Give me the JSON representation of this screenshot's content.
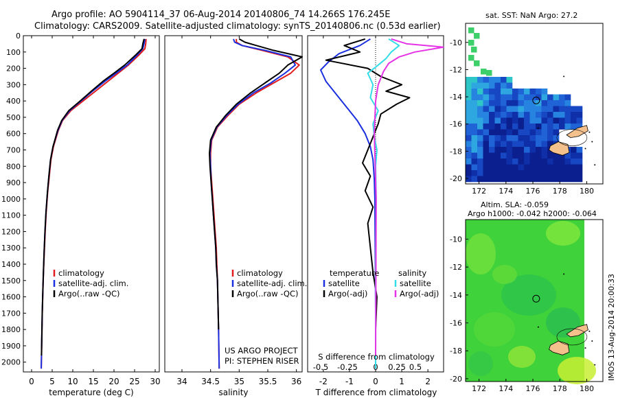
{
  "header": {
    "line1": "Argo profile: AO 5904114_37 06-Aug-2014 20140806_74 14.266S 176.245E",
    "line2": "Climatology: CARS2009. Satellite-adjusted climatology: synTS_20140806.nc (0.53d earlier)"
  },
  "colors": {
    "climatology": "#e01b1b",
    "satellite": "#1a2fe0",
    "argo": "#000000",
    "sal_satellite": "#33dde8",
    "sal_argo": "#e632e6",
    "land": "#f4c08c"
  },
  "chart_data": [
    {
      "type": "line",
      "id": "temperature",
      "xlabel": "temperature (deg C)",
      "ylabel": "",
      "xlim": [
        -2,
        31
      ],
      "ylim": [
        2060,
        0
      ],
      "xticks": [
        0,
        5,
        10,
        15,
        20,
        25,
        30
      ],
      "yticks": [
        0,
        100,
        200,
        300,
        400,
        500,
        600,
        700,
        800,
        900,
        1000,
        1100,
        1200,
        1300,
        1400,
        1500,
        1600,
        1700,
        1800,
        1900,
        2000
      ],
      "legend": [
        "climatology",
        "satellite-adj. clim.",
        "Argo(..raw -QC)"
      ],
      "series": [
        {
          "name": "climatology",
          "x": [
            27.8,
            27.7,
            27.5,
            26.0,
            23.5,
            21.0,
            18.5,
            15.5,
            12.5,
            9.5,
            7.5,
            6.5,
            5.3,
            4.7,
            4.3,
            3.9,
            3.55,
            3.3,
            3.1,
            2.9,
            2.75,
            2.6,
            2.5,
            2.42,
            2.35
          ],
          "y": [
            20,
            50,
            80,
            120,
            180,
            230,
            280,
            340,
            400,
            460,
            520,
            580,
            680,
            760,
            860,
            960,
            1080,
            1200,
            1320,
            1440,
            1560,
            1700,
            1840,
            1960,
            2040
          ]
        },
        {
          "name": "satellite-adj. clim.",
          "x": [
            27.5,
            27.3,
            27.0,
            25.6,
            23.2,
            20.5,
            17.8,
            14.8,
            12.0,
            9.2,
            7.4,
            6.4,
            5.2,
            4.6,
            4.2,
            3.85,
            3.5,
            3.25,
            3.05,
            2.88,
            2.73,
            2.58,
            2.48,
            2.4,
            2.33
          ],
          "y": [
            20,
            50,
            80,
            120,
            180,
            230,
            280,
            340,
            400,
            460,
            520,
            580,
            680,
            760,
            860,
            960,
            1080,
            1200,
            1320,
            1440,
            1560,
            1700,
            1840,
            1960,
            2040
          ]
        },
        {
          "name": "Argo(..raw -QC)",
          "x": [
            27.3,
            27.0,
            26.8,
            25.2,
            22.6,
            20.0,
            17.3,
            14.5,
            11.8,
            9.0,
            7.3,
            6.3,
            5.2,
            4.6,
            4.2,
            3.85,
            3.5,
            3.25,
            3.05,
            2.88,
            2.73,
            2.58,
            2.48,
            2.4
          ],
          "y": [
            20,
            50,
            80,
            120,
            180,
            230,
            280,
            340,
            400,
            460,
            520,
            580,
            680,
            760,
            860,
            960,
            1080,
            1200,
            1320,
            1440,
            1560,
            1700,
            1840,
            1960
          ]
        }
      ]
    },
    {
      "type": "line",
      "id": "salinity",
      "xlabel": "salinity",
      "ylabel": "",
      "xlim": [
        33.7,
        36.1
      ],
      "ylim": [
        2060,
        0
      ],
      "xticks": [
        34,
        34.5,
        35,
        35.5,
        36
      ],
      "legend": [
        "climatology",
        "satellite-adj. clim.",
        "Argo(..raw -QC)"
      ],
      "annotations": [
        "US ARGO PROJECT",
        "PI: STEPHEN RISER"
      ],
      "series": [
        {
          "name": "climatology",
          "x": [
            34.95,
            34.95,
            35.05,
            35.4,
            35.85,
            36.05,
            35.9,
            35.6,
            35.3,
            35.0,
            34.8,
            34.62,
            34.52,
            34.5,
            34.5,
            34.52,
            34.54,
            34.56,
            34.58,
            34.6,
            34.61,
            34.62,
            34.63,
            34.64,
            34.65
          ],
          "y": [
            20,
            40,
            60,
            90,
            130,
            180,
            230,
            290,
            350,
            420,
            490,
            560,
            640,
            720,
            800,
            900,
            1000,
            1100,
            1200,
            1300,
            1400,
            1500,
            1650,
            1800,
            2040
          ]
        },
        {
          "name": "satellite-adj. clim.",
          "x": [
            34.9,
            34.92,
            35.05,
            35.45,
            35.9,
            35.98,
            35.8,
            35.55,
            35.25,
            34.98,
            34.78,
            34.61,
            34.51,
            34.49,
            34.5,
            34.51,
            34.53,
            34.55,
            34.57,
            34.59,
            34.6,
            34.62,
            34.63,
            34.64,
            34.65
          ],
          "y": [
            20,
            40,
            60,
            90,
            130,
            180,
            230,
            290,
            350,
            420,
            490,
            560,
            640,
            720,
            800,
            900,
            1000,
            1100,
            1200,
            1300,
            1400,
            1500,
            1650,
            1800,
            2040
          ]
        },
        {
          "name": "Argo(..raw -QC)",
          "x": [
            35.0,
            35.1,
            35.3,
            35.6,
            36.1,
            35.85,
            35.7,
            35.45,
            35.2,
            34.95,
            34.76,
            34.6,
            34.5,
            34.48,
            34.49,
            34.51,
            34.53,
            34.55,
            34.57,
            34.59,
            34.6,
            34.62,
            34.63,
            34.64
          ],
          "y": [
            20,
            40,
            60,
            90,
            130,
            180,
            230,
            290,
            350,
            420,
            490,
            560,
            640,
            720,
            800,
            900,
            1000,
            1100,
            1200,
            1300,
            1400,
            1500,
            1650,
            1800
          ]
        }
      ]
    },
    {
      "type": "line",
      "id": "difference",
      "xlabel": "T difference from climatology",
      "x2label": "S difference from climatology",
      "ylabel": "",
      "xlim": [
        -2.6,
        2.6
      ],
      "ylim": [
        2060,
        0
      ],
      "xticks": [
        -2,
        -1,
        0,
        1,
        2
      ],
      "x2ticks": [
        "-0.5",
        "-0.25",
        "0",
        "0.25",
        "0.5"
      ],
      "legend_groups": [
        {
          "title": "temperature",
          "items": [
            "satellite",
            "Argo(-adj)"
          ]
        },
        {
          "title": "salinity",
          "items": [
            "satellite",
            "Argo(-adj)"
          ]
        }
      ],
      "series": [
        {
          "name": "temperature satellite",
          "x": [
            -0.2,
            -0.6,
            -1.4,
            -1.8,
            -2.1,
            -1.9,
            -1.6,
            -1.3,
            -1.0,
            -0.7,
            -0.4,
            -0.2,
            -0.1,
            -0.05,
            -0.03,
            -0.02,
            -0.01,
            0,
            0
          ],
          "y": [
            20,
            60,
            110,
            160,
            210,
            280,
            340,
            400,
            460,
            520,
            600,
            680,
            760,
            880,
            1000,
            1200,
            1400,
            1700,
            2040
          ]
        },
        {
          "name": "temperature Argo(-adj)",
          "x": [
            -0.4,
            -1.2,
            -0.6,
            -1.9,
            -0.3,
            0.2,
            1.0,
            0.4,
            1.3,
            0.8,
            0.2,
            0.1,
            -0.1,
            -0.3,
            -0.5,
            -0.2,
            -0.4,
            -0.1,
            -0.3,
            -0.2,
            -0.1,
            0.05,
            0,
            0
          ],
          "y": [
            20,
            60,
            100,
            150,
            200,
            250,
            300,
            340,
            380,
            420,
            480,
            540,
            620,
            700,
            780,
            860,
            950,
            1050,
            1150,
            1300,
            1450,
            1600,
            1800,
            1960
          ]
        },
        {
          "name": "salinity satellite",
          "x": [
            0.5,
            0.9,
            0.6,
            0.4,
            0.1,
            -0.3,
            -0.1,
            -0.2,
            0.1,
            -0.1,
            -0.05,
            0.05,
            0,
            0.02,
            0,
            0
          ],
          "y": [
            20,
            60,
            100,
            140,
            180,
            230,
            300,
            380,
            460,
            540,
            620,
            700,
            800,
            1000,
            1400,
            2040
          ]
        },
        {
          "name": "salinity Argo(-adj)",
          "x": [
            0.6,
            1.2,
            2.6,
            1.5,
            0.9,
            0.5,
            0.3,
            0.1,
            0,
            -0.05,
            0.02,
            0
          ],
          "y": [
            20,
            50,
            70,
            100,
            130,
            170,
            220,
            300,
            400,
            600,
            1000,
            1960
          ]
        }
      ]
    },
    {
      "type": "heatmap",
      "id": "sst-map",
      "title": "sat. SST: NaN Argo: 27.2",
      "xlim": [
        171,
        181.2
      ],
      "ylim": [
        -20.4,
        -8.6
      ],
      "xticks": [
        172,
        174,
        176,
        178,
        180
      ],
      "yticks": [
        -10,
        -12,
        -14,
        -16,
        -18,
        -20
      ],
      "marker": {
        "lon": 176.245,
        "lat": -14.266
      }
    },
    {
      "type": "heatmap",
      "id": "sla-map",
      "title": "Altim. SLA: -0.059",
      "subtitle": "Argo h1000: -0.042 h2000: -0.064",
      "xlim": [
        171,
        181.2
      ],
      "ylim": [
        -20.2,
        -8.6
      ],
      "xticks": [
        172,
        174,
        176,
        178,
        180
      ],
      "yticks": [
        -10,
        -12,
        -14,
        -16,
        -18,
        -20
      ],
      "marker": {
        "lon": 176.245,
        "lat": -14.266
      }
    }
  ],
  "side_label": "IMOS 13-Aug-2014 20:00:33"
}
